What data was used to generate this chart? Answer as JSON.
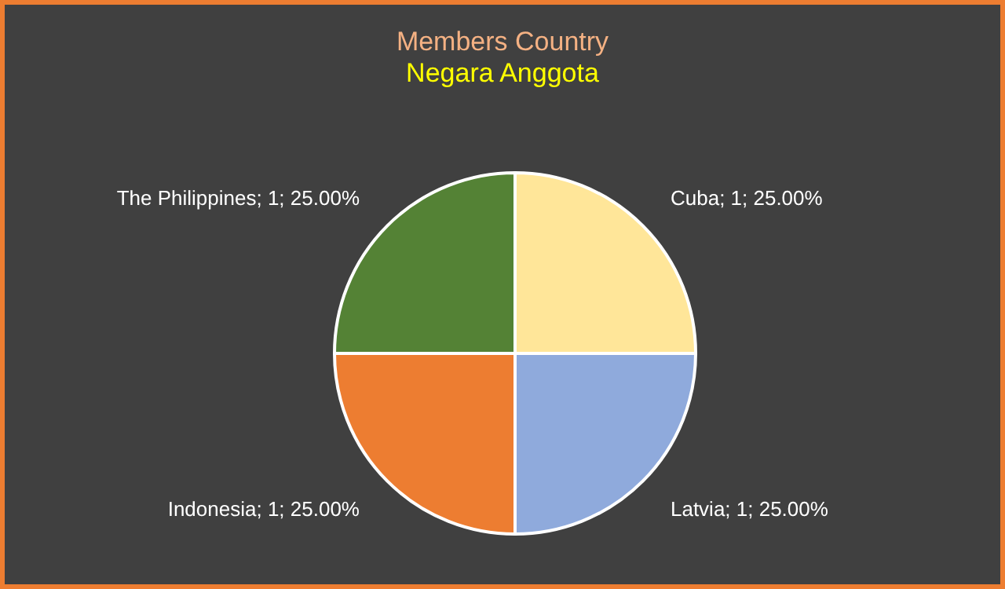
{
  "chart_data": {
    "type": "pie",
    "title": "Members Country",
    "subtitle": "Negara Anggota",
    "categories": [
      "Cuba",
      "Latvia",
      "Indonesia",
      "The Philippines"
    ],
    "values": [
      1,
      1,
      1,
      1
    ],
    "colors": [
      "#ffe699",
      "#8faadc",
      "#ed7d31",
      "#548235"
    ],
    "value_labels": [
      "1; 25.00%",
      "1; 25.00%",
      "1; 25.00%",
      "1; 25.00%"
    ],
    "legend": false
  }
}
